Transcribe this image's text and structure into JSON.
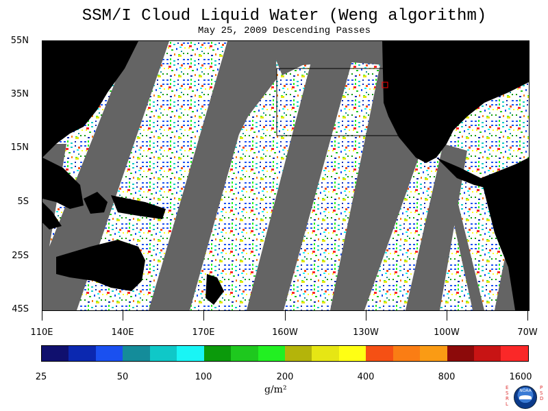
{
  "title": "SSM/I Cloud Liquid Water (Weng algorithm)",
  "subtitle": "May 25, 2009  Descending Passes",
  "lat_labels": [
    "55N",
    "35N",
    "15N",
    "5S",
    "25S",
    "45S"
  ],
  "lon_labels": [
    "110E",
    "140E",
    "170E",
    "160W",
    "130W",
    "100W",
    "70W"
  ],
  "colorbar": {
    "colors": [
      "#10106e",
      "#0b28b0",
      "#1a50f0",
      "#148c9a",
      "#0fc8c8",
      "#19f5f5",
      "#0b9a0b",
      "#1ec81e",
      "#22f022",
      "#b4b40a",
      "#e6e614",
      "#ffff14",
      "#f55014",
      "#fa7d14",
      "#fa9b14",
      "#8c0a0a",
      "#c81414",
      "#fa2828"
    ],
    "tick_labels": [
      "25",
      "50",
      "100",
      "200",
      "400",
      "800",
      "1600"
    ],
    "units": "g/m²"
  },
  "logo": {
    "left_letters": [
      "E",
      "S",
      "R",
      "L"
    ],
    "right_letters": [
      "P",
      "S",
      "D"
    ],
    "emblem_text": "NOAA"
  },
  "colors": {
    "land": "#000000",
    "gap": "#646464",
    "box": "#000000",
    "marker": "#ff0000"
  }
}
